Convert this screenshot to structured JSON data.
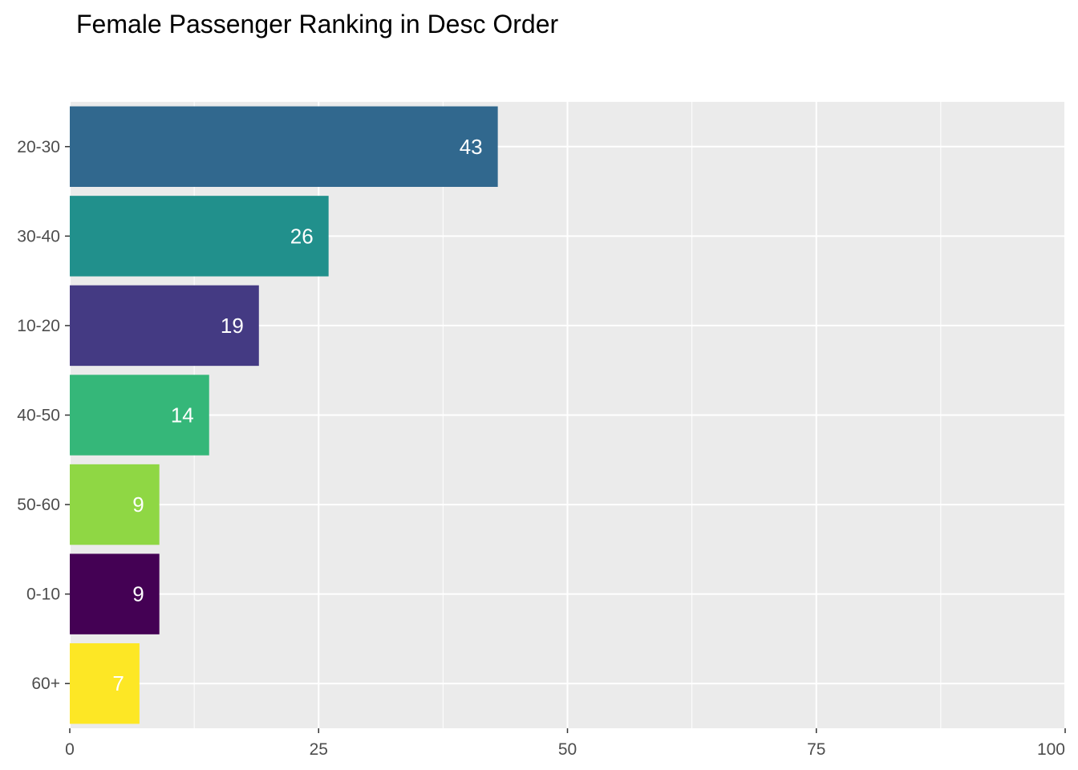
{
  "chart_data": {
    "type": "bar",
    "orientation": "horizontal",
    "title": "Female Passenger Ranking in Desc Order",
    "xlabel": "",
    "ylabel": "",
    "categories": [
      "20-30",
      "30-40",
      "10-20",
      "40-50",
      "50-60",
      "0-10",
      "60+"
    ],
    "values": [
      43,
      26,
      19,
      14,
      9,
      9,
      7
    ],
    "colors": [
      "#31688E",
      "#21908C",
      "#443A83",
      "#35B779",
      "#8FD744",
      "#440154",
      "#FDE725"
    ],
    "xlim": [
      0,
      100
    ],
    "x_ticks": [
      0,
      25,
      50,
      75,
      100
    ],
    "x_tick_labels": [
      "0",
      "25",
      "50",
      "75",
      "100"
    ],
    "grid": true,
    "panel_background": "#EBEBEB",
    "grid_color": "#FFFFFF",
    "data_label_color": "#FFFFFF",
    "legend": "none"
  }
}
